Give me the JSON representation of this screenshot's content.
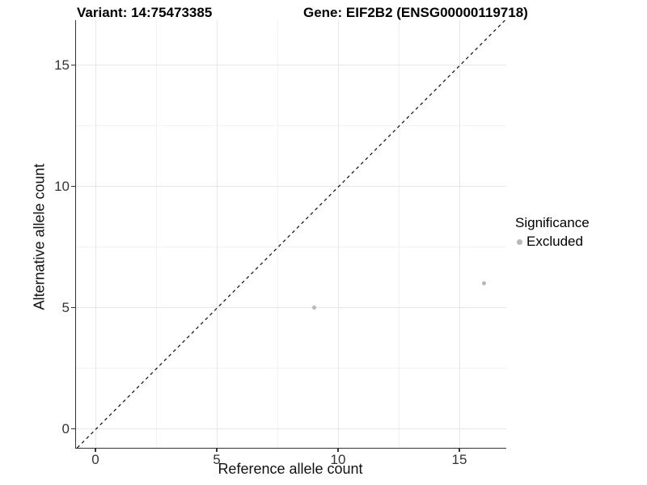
{
  "titles": {
    "left": "Variant: 14:75473385",
    "right": "Gene: EIF2B2 (ENSG00000119718)"
  },
  "chart_data": {
    "type": "scatter",
    "title_left": "Variant: 14:75473385",
    "title_right": "Gene: EIF2B2 (ENSG00000119718)",
    "xlabel": "Reference allele count",
    "ylabel": "Alternative allele count",
    "xlim": [
      -0.833,
      16.9
    ],
    "ylim": [
      -0.783,
      16.85
    ],
    "xticks": [
      0,
      5,
      10,
      15
    ],
    "yticks": [
      0,
      5,
      10,
      15
    ],
    "minor_xticks": [
      2.5,
      7.5,
      12.5
    ],
    "minor_yticks": [
      2.5,
      7.5,
      12.5
    ],
    "grid": "major-and-minor",
    "identity_line": {
      "style": "dashed",
      "color": "#1a1a1a",
      "from": [
        -0.783,
        -0.783
      ],
      "to": [
        16.85,
        16.85
      ]
    },
    "series": [
      {
        "name": "Excluded",
        "color": "#b8b8b8",
        "points": [
          {
            "x": 9,
            "y": 5
          },
          {
            "x": 16,
            "y": 6
          }
        ]
      }
    ],
    "legend": {
      "title": "Significance",
      "position": "right",
      "items": [
        {
          "label": "Excluded",
          "color": "#b8b8b8"
        }
      ]
    }
  },
  "colors": {
    "background": "#ffffff",
    "axis_line": "#333333",
    "grid_major": "#e6e6e6",
    "grid_minor": "#f2f2f2",
    "tick_text": "#333333",
    "point": "#b8b8b8"
  }
}
